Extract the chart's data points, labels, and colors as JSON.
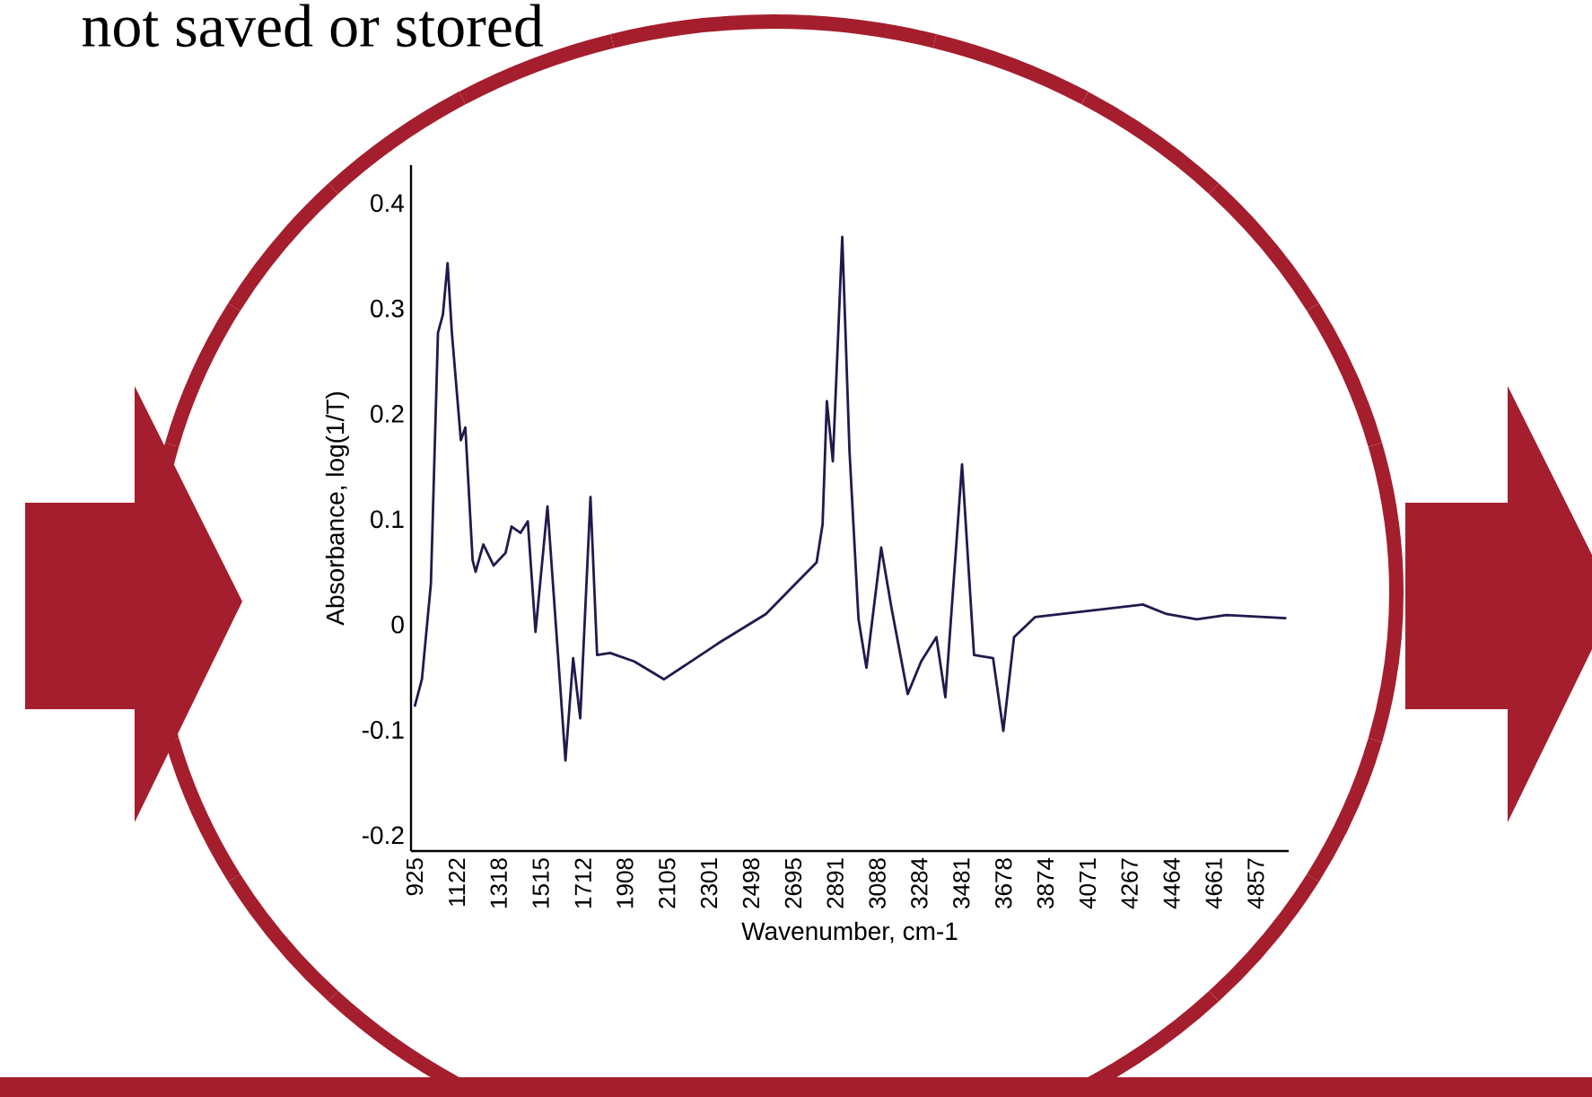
{
  "chart_data": {
    "type": "line",
    "xlabel": "Wavenumber, cm-1",
    "ylabel": "Absorbance, log(1/T)",
    "annotations": [
      "not saved or stored"
    ],
    "xlim": [
      908,
      5011
    ],
    "ylim": [
      -0.215,
      0.436
    ],
    "xticks": [
      925,
      1122,
      1318,
      1515,
      1712,
      1908,
      2105,
      2301,
      2498,
      2695,
      2891,
      3088,
      3284,
      3481,
      3678,
      3874,
      4071,
      4267,
      4464,
      4661,
      4857
    ],
    "yticks": [
      -0.2,
      -0.1,
      0,
      0.1,
      0.2,
      0.3,
      0.4
    ],
    "x": [
      925,
      959,
      1001,
      1034,
      1057,
      1079,
      1099,
      1141,
      1162,
      1196,
      1210,
      1246,
      1294,
      1350,
      1378,
      1420,
      1454,
      1490,
      1546,
      1630,
      1666,
      1699,
      1747,
      1778,
      1839,
      1951,
      2091,
      2343,
      2567,
      2678,
      2804,
      2832,
      2852,
      2880,
      2924,
      2958,
      3000,
      3037,
      3106,
      3154,
      3230,
      3293,
      3364,
      3406,
      3484,
      3540,
      3629,
      3677,
      3727,
      3825,
      4077,
      4329,
      4440,
      4581,
      4720,
      5000
    ],
    "values": [
      -0.078,
      -0.052,
      0.039,
      0.277,
      0.294,
      0.343,
      0.277,
      0.175,
      0.187,
      0.061,
      0.05,
      0.076,
      0.056,
      0.068,
      0.093,
      0.087,
      0.098,
      -0.007,
      0.112,
      -0.129,
      -0.032,
      -0.089,
      0.121,
      -0.029,
      -0.027,
      -0.035,
      -0.052,
      -0.018,
      0.01,
      0.033,
      0.059,
      0.095,
      0.212,
      0.155,
      0.368,
      0.164,
      0.005,
      -0.041,
      0.073,
      0.016,
      -0.066,
      -0.035,
      -0.012,
      -0.069,
      0.152,
      -0.029,
      -0.032,
      -0.101,
      -0.012,
      0.007,
      0.013,
      0.019,
      0.01,
      0.005,
      0.009,
      0.006
    ],
    "color": "#1f1b4d"
  }
}
